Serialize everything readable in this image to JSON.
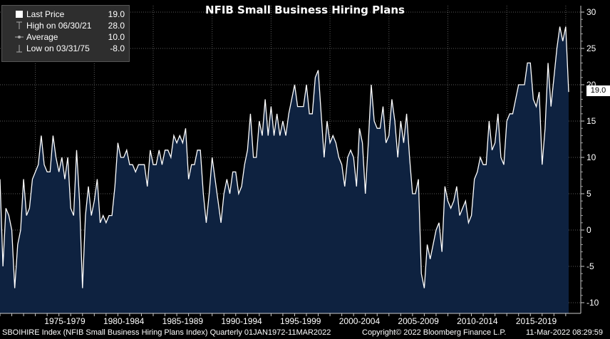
{
  "title": "NFIB Small Business Hiring Plans",
  "legend": {
    "items": [
      {
        "label": "Last Price",
        "value": "19.0",
        "icon": "filled-square-icon"
      },
      {
        "label": "High on 06/30/21",
        "value": "28.0",
        "icon": "high-marker-icon"
      },
      {
        "label": "Average",
        "value": "10.0",
        "icon": "average-marker-icon"
      },
      {
        "label": "Low on 03/31/75",
        "value": "-8.0",
        "icon": "low-marker-icon"
      }
    ]
  },
  "last_value_label": "19.0",
  "footer": {
    "left": "SBOIHIRE Index (NFIB Small Business Hiring Plans Index)  Quarterly 01JAN1972-11MAR2022",
    "middle": "Copyright© 2022 Bloomberg Finance L.P.",
    "right": "11-Mar-2022 08:29:59"
  },
  "colors": {
    "background": "#000000",
    "area_fill": "#0e2240",
    "line": "#ffffff",
    "grid": "#5a5a5a"
  },
  "chart_data": {
    "type": "area",
    "title": "NFIB Small Business Hiring Plans",
    "ylim": [
      -11,
      30
    ],
    "y_ticks": [
      -10,
      -5,
      0,
      5,
      10,
      15,
      20,
      25,
      30
    ],
    "x_labels": [
      "1975-1979",
      "1980-1984",
      "1985-1989",
      "1990-1994",
      "1995-1999",
      "2000-2004",
      "2005-2009",
      "2010-2014",
      "2015-2019"
    ],
    "grid": true,
    "axis_side": "right",
    "frequency": "quarterly",
    "start": "1972-Q1",
    "end": "2021-Q4",
    "values": [
      7,
      -5,
      3,
      2,
      0,
      -8,
      -2,
      0,
      7,
      2,
      3,
      7,
      8,
      9,
      13,
      9,
      8,
      8,
      13,
      10,
      8,
      10,
      7,
      10,
      3,
      2,
      11,
      4,
      -8,
      2,
      6,
      2,
      4,
      7,
      1,
      2,
      1,
      2,
      2,
      6,
      12,
      10,
      10,
      11,
      9,
      9,
      8,
      9,
      9,
      9,
      6,
      11,
      9,
      9,
      11,
      9,
      11,
      11,
      10,
      13,
      12,
      13,
      12,
      14,
      7,
      9,
      9,
      11,
      11,
      5,
      1,
      5,
      10,
      7,
      4,
      1,
      5,
      7,
      5,
      8,
      8,
      5,
      6,
      9,
      11,
      16,
      10,
      10,
      15,
      13,
      18,
      13,
      17,
      13,
      16,
      13,
      15,
      13,
      16,
      18,
      20,
      17,
      17,
      17,
      20,
      16,
      16,
      21,
      22,
      16,
      10,
      15,
      12,
      13,
      12,
      10,
      9,
      6,
      10,
      11,
      10,
      6,
      14,
      12,
      5,
      12,
      20,
      15,
      14,
      14,
      17,
      12,
      13,
      18,
      15,
      10,
      15,
      12,
      16,
      10,
      5,
      5,
      7,
      -6,
      -8,
      -2,
      -4,
      -2,
      0,
      1,
      -3,
      6,
      4,
      3,
      4,
      6,
      2,
      3,
      4,
      1,
      2,
      7,
      8,
      10,
      9,
      9,
      15,
      11,
      12,
      16,
      10,
      9,
      15,
      16,
      16,
      18,
      20,
      20,
      20,
      23,
      23,
      18,
      17,
      19,
      9,
      14,
      23,
      17,
      21,
      25,
      28,
      26,
      28,
      19
    ]
  }
}
